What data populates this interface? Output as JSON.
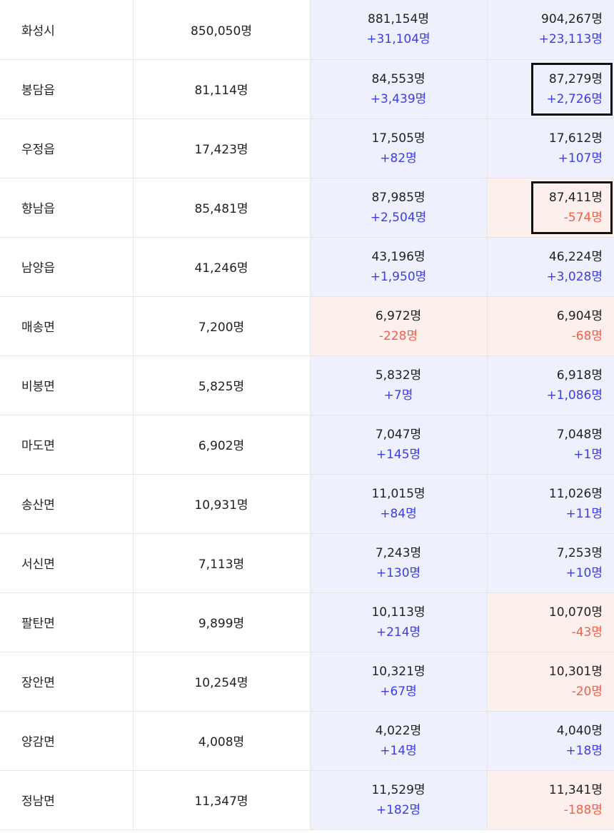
{
  "colors": {
    "increase_text": "#3d3de6",
    "decrease_text": "#f0614c",
    "increase_bg": "#eef0fd",
    "decrease_bg": "#fdf0ec",
    "highlight_border": "#111111"
  },
  "rows": [
    {
      "region": "화성시",
      "base": "850,050명",
      "p2": "881,154명",
      "c2": "+31,104명",
      "t2": "up",
      "p3": "904,267명",
      "c3": "+23,113명",
      "t3": "up",
      "h3": false
    },
    {
      "region": "봉담읍",
      "base": "81,114명",
      "p2": "84,553명",
      "c2": "+3,439명",
      "t2": "up",
      "p3": "87,279명",
      "c3": "+2,726명",
      "t3": "up",
      "h3": true
    },
    {
      "region": "우정읍",
      "base": "17,423명",
      "p2": "17,505명",
      "c2": "+82명",
      "t2": "up",
      "p3": "17,612명",
      "c3": "+107명",
      "t3": "up",
      "h3": false
    },
    {
      "region": "향남읍",
      "base": "85,481명",
      "p2": "87,985명",
      "c2": "+2,504명",
      "t2": "up",
      "p3": "87,411명",
      "c3": "-574명",
      "t3": "down",
      "h3": true
    },
    {
      "region": "남양읍",
      "base": "41,246명",
      "p2": "43,196명",
      "c2": "+1,950명",
      "t2": "up",
      "p3": "46,224명",
      "c3": "+3,028명",
      "t3": "up",
      "h3": false
    },
    {
      "region": "매송면",
      "base": "7,200명",
      "p2": "6,972명",
      "c2": "-228명",
      "t2": "down",
      "p3": "6,904명",
      "c3": "-68명",
      "t3": "down",
      "h3": false
    },
    {
      "region": "비봉면",
      "base": "5,825명",
      "p2": "5,832명",
      "c2": "+7명",
      "t2": "up",
      "p3": "6,918명",
      "c3": "+1,086명",
      "t3": "up",
      "h3": false
    },
    {
      "region": "마도면",
      "base": "6,902명",
      "p2": "7,047명",
      "c2": "+145명",
      "t2": "up",
      "p3": "7,048명",
      "c3": "+1명",
      "t3": "up",
      "h3": false
    },
    {
      "region": "송산면",
      "base": "10,931명",
      "p2": "11,015명",
      "c2": "+84명",
      "t2": "up",
      "p3": "11,026명",
      "c3": "+11명",
      "t3": "up",
      "h3": false
    },
    {
      "region": "서신면",
      "base": "7,113명",
      "p2": "7,243명",
      "c2": "+130명",
      "t2": "up",
      "p3": "7,253명",
      "c3": "+10명",
      "t3": "up",
      "h3": false
    },
    {
      "region": "팔탄면",
      "base": "9,899명",
      "p2": "10,113명",
      "c2": "+214명",
      "t2": "up",
      "p3": "10,070명",
      "c3": "-43명",
      "t3": "down",
      "h3": false
    },
    {
      "region": "장안면",
      "base": "10,254명",
      "p2": "10,321명",
      "c2": "+67명",
      "t2": "up",
      "p3": "10,301명",
      "c3": "-20명",
      "t3": "down",
      "h3": false
    },
    {
      "region": "양감면",
      "base": "4,008명",
      "p2": "4,022명",
      "c2": "+14명",
      "t2": "up",
      "p3": "4,040명",
      "c3": "+18명",
      "t3": "up",
      "h3": false
    },
    {
      "region": "정남면",
      "base": "11,347명",
      "p2": "11,529명",
      "c2": "+182명",
      "t2": "up",
      "p3": "11,341명",
      "c3": "-188명",
      "t3": "down",
      "h3": false
    }
  ]
}
